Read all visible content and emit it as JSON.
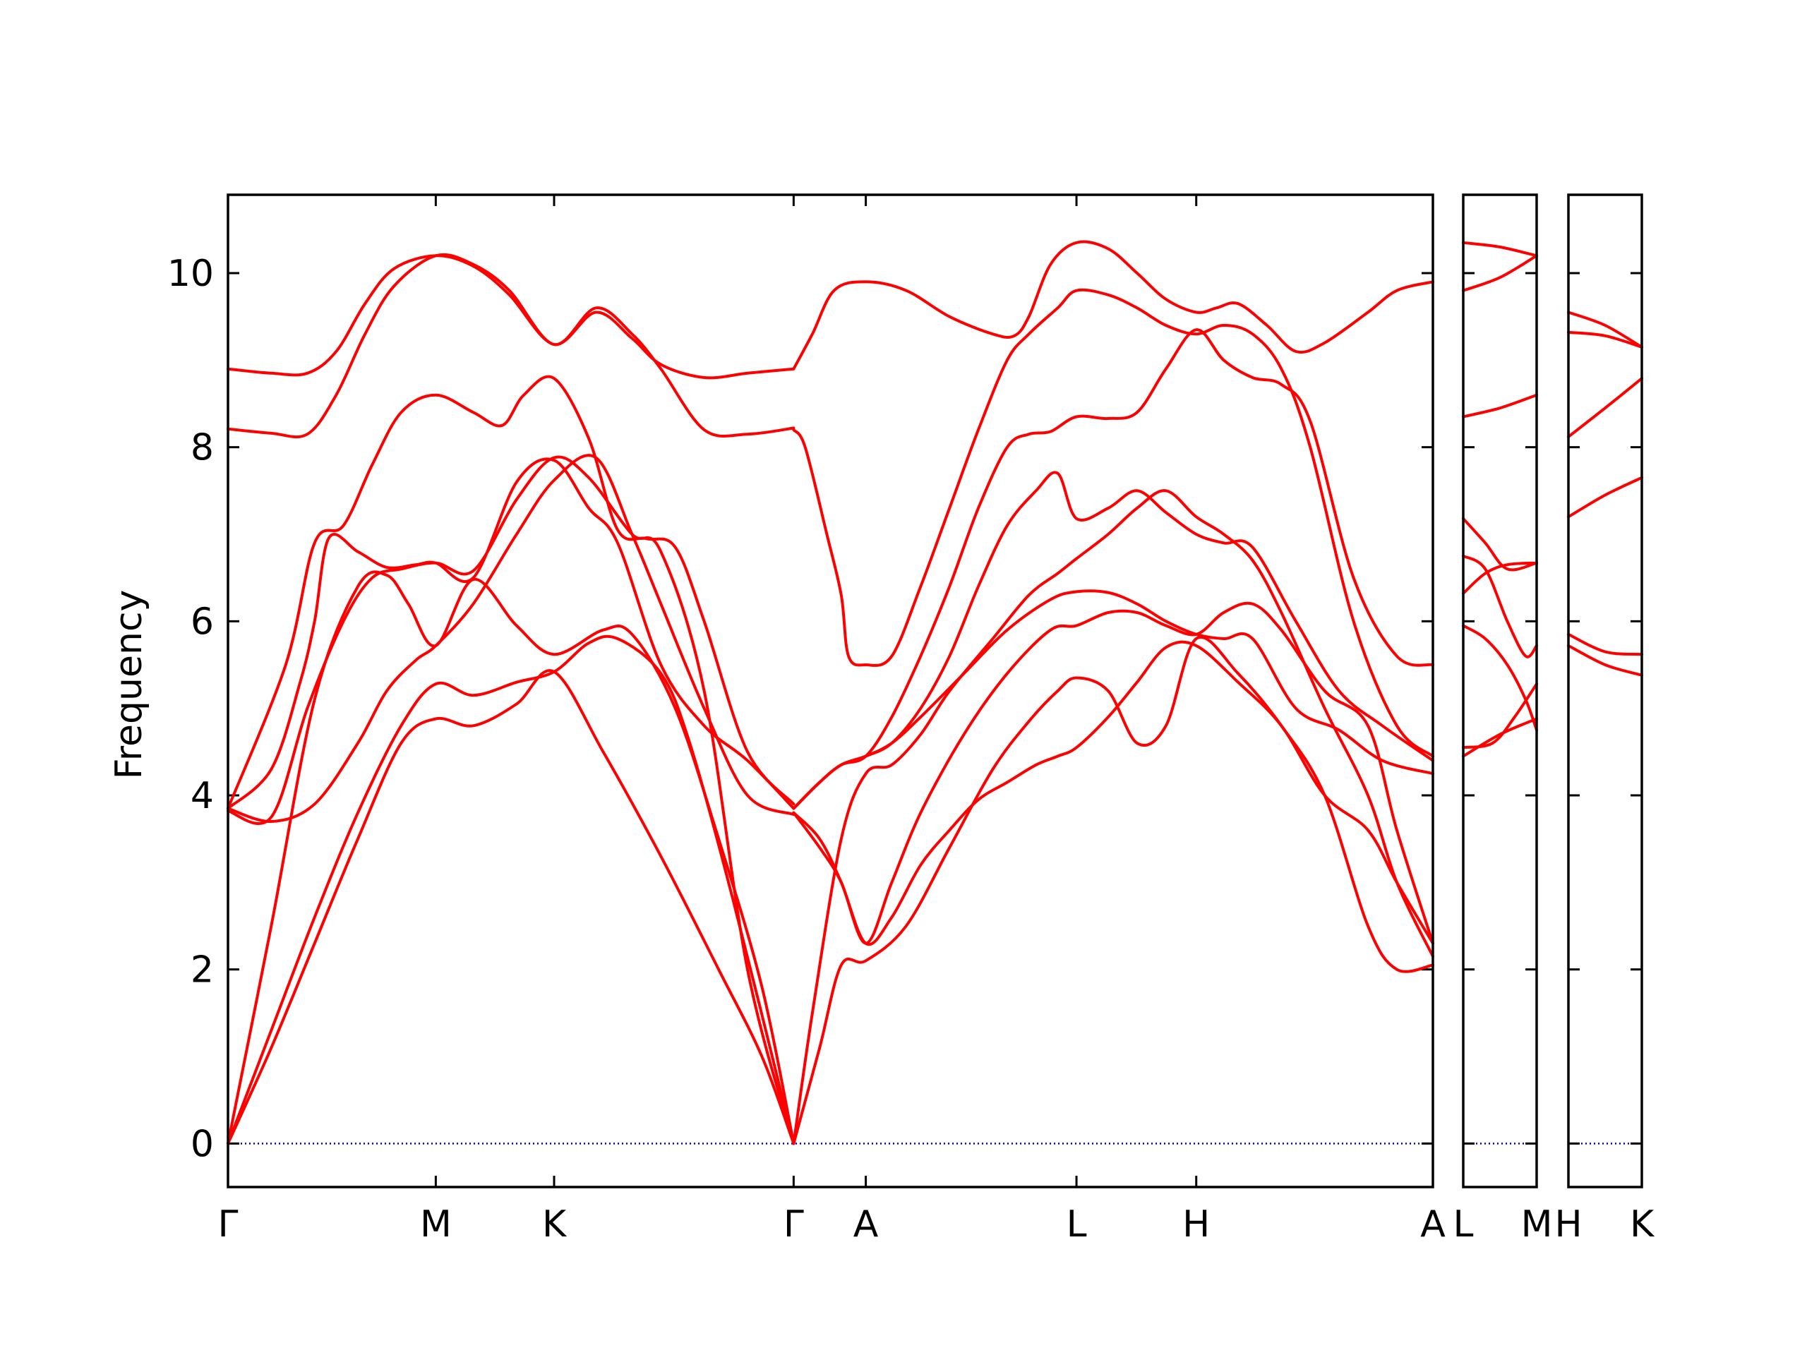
{
  "chart_data": {
    "type": "line",
    "title": "",
    "ylabel": "Frequency",
    "xlabel": "",
    "ylim": [
      -0.5,
      10.9
    ],
    "yticks": [
      0,
      2,
      4,
      6,
      8,
      10
    ],
    "grid": false,
    "legend": "none",
    "line_color": "#ff0000",
    "zero_line_color": "#0000cc",
    "panels": [
      {
        "xlim": [
          0,
          8.35
        ],
        "ticks": [
          {
            "label": "Γ",
            "x": 0
          },
          {
            "label": "M",
            "x": 1.44
          },
          {
            "label": "K",
            "x": 2.26
          },
          {
            "label": "Γ",
            "x": 3.92
          },
          {
            "label": "A",
            "x": 4.42
          },
          {
            "label": "L",
            "x": 5.88
          },
          {
            "label": "H",
            "x": 6.71
          },
          {
            "label": "A",
            "x": 8.35
          }
        ],
        "series": [
          {
            "x": [
              0,
              0.3,
              0.6,
              0.9,
              1.2,
              1.44,
              1.7,
              2.0,
              2.26,
              2.6,
              3.0,
              3.4,
              3.7,
              3.92
            ],
            "values": [
              0,
              1.1,
              2.3,
              3.5,
              4.6,
              4.88,
              4.8,
              5.05,
              5.42,
              4.5,
              3.3,
              2.0,
              1.0,
              0
            ]
          },
          {
            "x": [
              0,
              0.3,
              0.6,
              0.9,
              1.2,
              1.44,
              1.7,
              2.0,
              2.26,
              2.5,
              2.7,
              3.0,
              3.2,
              3.5,
              3.92
            ],
            "values": [
              0,
              1.3,
              2.6,
              3.8,
              4.8,
              5.28,
              5.15,
              5.3,
              5.42,
              5.75,
              5.8,
              5.4,
              4.6,
              2.8,
              0
            ]
          },
          {
            "x": [
              0,
              0.3,
              0.6,
              0.9,
              1.1,
              1.25,
              1.44,
              1.7,
              2.0,
              2.26,
              2.6,
              2.8,
              3.1,
              3.4,
              3.7,
              3.92
            ],
            "values": [
              0,
              2.5,
              5.1,
              6.4,
              6.53,
              6.2,
              5.72,
              6.48,
              5.95,
              5.62,
              5.9,
              5.85,
              5.0,
              3.5,
              1.8,
              0
            ]
          },
          {
            "x": [
              0,
              0.3,
              0.55,
              0.8,
              1.0,
              1.2,
              1.44,
              1.7,
              2.0,
              2.26,
              2.5,
              2.8,
              3.0,
              3.3,
              3.6,
              3.92
            ],
            "values": [
              3.82,
              3.75,
              5.0,
              6.0,
              6.5,
              6.6,
              6.67,
              6.58,
              7.4,
              7.88,
              7.65,
              7.0,
              6.8,
              5.2,
              2.0,
              0
            ]
          },
          {
            "x": [
              0,
              0.3,
              0.6,
              0.9,
              1.1,
              1.3,
              1.44,
              1.7,
              2.0,
              2.26,
              2.55,
              2.8,
              3.0,
              3.3,
              3.6,
              3.92
            ],
            "values": [
              3.85,
              3.7,
              3.9,
              4.6,
              5.2,
              5.55,
              5.72,
              6.2,
              7.0,
              7.62,
              7.88,
              7.0,
              6.2,
              5.0,
              4.0,
              3.78
            ]
          },
          {
            "x": [
              0,
              0.3,
              0.5,
              0.6,
              0.7,
              0.9,
              1.1,
              1.3,
              1.44,
              1.7,
              2.0,
              2.26,
              2.5,
              2.7,
              3.0,
              3.3,
              3.6,
              3.92
            ],
            "values": [
              3.85,
              4.3,
              5.3,
              6.0,
              6.96,
              6.8,
              6.62,
              6.65,
              6.67,
              6.5,
              7.6,
              7.85,
              7.3,
              6.9,
              5.5,
              4.8,
              4.4,
              3.85
            ]
          },
          {
            "x": [
              0,
              0.4,
              0.6,
              0.8,
              1.0,
              1.2,
              1.44,
              1.7,
              1.9,
              2.05,
              2.26,
              2.5,
              2.7,
              2.9,
              3.1,
              3.3,
              3.6,
              3.92
            ],
            "values": [
              3.85,
              5.5,
              6.9,
              7.1,
              7.8,
              8.4,
              8.6,
              8.4,
              8.25,
              8.6,
              8.79,
              8.1,
              7.05,
              6.95,
              6.85,
              6.0,
              4.5,
              3.9
            ]
          },
          {
            "x": [
              0,
              0.3,
              0.55,
              0.75,
              0.95,
              1.15,
              1.44,
              1.7,
              1.95,
              2.26,
              2.55,
              2.8,
              3.0,
              3.3,
              3.6,
              3.92
            ],
            "values": [
              8.21,
              8.16,
              8.15,
              8.6,
              9.3,
              9.85,
              10.2,
              10.1,
              9.8,
              9.18,
              9.6,
              9.3,
              8.9,
              8.2,
              8.15,
              8.22
            ]
          },
          {
            "x": [
              0,
              0.3,
              0.55,
              0.75,
              0.95,
              1.15,
              1.44,
              1.7,
              1.95,
              2.26,
              2.55,
              2.8,
              3.0,
              3.3,
              3.6,
              3.92
            ],
            "values": [
              8.9,
              8.85,
              8.85,
              9.1,
              9.65,
              10.05,
              10.2,
              10.08,
              9.75,
              9.18,
              9.55,
              9.25,
              8.95,
              8.8,
              8.85,
              8.9
            ]
          },
          {
            "x": [
              3.92,
              4.1,
              4.25,
              4.42,
              4.7,
              5.0,
              5.3,
              5.55,
              5.75,
              5.88,
              6.1,
              6.3,
              6.5,
              6.71,
              7.0,
              7.3,
              7.6,
              7.9,
              8.1,
              8.35
            ],
            "values": [
              0,
              1.1,
              2.05,
              2.1,
              2.5,
              3.4,
              4.3,
              4.85,
              5.2,
              5.35,
              5.2,
              4.6,
              4.8,
              5.8,
              5.4,
              4.8,
              4.0,
              2.5,
              2.0,
              2.05
            ]
          },
          {
            "x": [
              3.92,
              4.05,
              4.25,
              4.42,
              4.6,
              4.8,
              5.0,
              5.3,
              5.55,
              5.75,
              5.88,
              6.1,
              6.3,
              6.5,
              6.71,
              6.9,
              7.1,
              7.3,
              7.6,
              7.9,
              8.1,
              8.35
            ],
            "values": [
              0,
              1.5,
              3.5,
              4.25,
              4.35,
              4.7,
              5.2,
              5.8,
              6.3,
              6.55,
              6.72,
              7.0,
              7.3,
              7.5,
              7.2,
              7.0,
              6.7,
              6.1,
              5.0,
              4.0,
              3.0,
              2.15
            ]
          },
          {
            "x": [
              3.92,
              4.1,
              4.25,
              4.42,
              4.6,
              4.8,
              5.0,
              5.2,
              5.4,
              5.6,
              5.75,
              5.88,
              6.1,
              6.3,
              6.5,
              6.71,
              7.0,
              7.3,
              7.6,
              7.9,
              8.1,
              8.35
            ],
            "values": [
              3.8,
              3.5,
              3.0,
              2.3,
              2.6,
              3.2,
              3.6,
              3.95,
              4.15,
              4.35,
              4.45,
              4.55,
              4.9,
              5.3,
              5.7,
              5.72,
              5.3,
              4.8,
              4.0,
              3.6,
              3.0,
              2.3
            ]
          },
          {
            "x": [
              3.92,
              4.1,
              4.25,
              4.42,
              4.6,
              4.8,
              5.1,
              5.4,
              5.7,
              5.88,
              6.1,
              6.3,
              6.5,
              6.71,
              6.9,
              7.1,
              7.3,
              7.6,
              7.9,
              8.1,
              8.35
            ],
            "values": [
              3.8,
              3.4,
              3.0,
              2.3,
              3.0,
              3.8,
              4.7,
              5.4,
              5.9,
              5.95,
              6.1,
              6.1,
              5.95,
              5.85,
              6.1,
              6.2,
              5.9,
              5.2,
              4.8,
              3.6,
              2.3
            ]
          },
          {
            "x": [
              3.92,
              4.1,
              4.25,
              4.42,
              4.6,
              4.8,
              5.1,
              5.4,
              5.7,
              5.88,
              6.1,
              6.3,
              6.5,
              6.71,
              6.9,
              7.1,
              7.4,
              7.7,
              8.0,
              8.35
            ],
            "values": [
              3.85,
              4.15,
              4.35,
              4.45,
              4.6,
              4.9,
              5.4,
              5.9,
              6.25,
              6.34,
              6.33,
              6.2,
              6.0,
              5.85,
              5.8,
              5.8,
              5.0,
              4.75,
              4.4,
              4.25
            ]
          },
          {
            "x": [
              3.92,
              4.1,
              4.25,
              4.42,
              4.6,
              4.8,
              5.0,
              5.2,
              5.4,
              5.6,
              5.75,
              5.88,
              6.1,
              6.3,
              6.5,
              6.71,
              6.9,
              7.1,
              7.4,
              7.7,
              8.0,
              8.35
            ],
            "values": [
              3.85,
              4.15,
              4.35,
              4.45,
              4.6,
              5.0,
              5.6,
              6.4,
              7.1,
              7.5,
              7.7,
              7.18,
              7.3,
              7.5,
              7.25,
              7.0,
              6.9,
              6.85,
              6.0,
              5.2,
              4.8,
              4.4
            ]
          },
          {
            "x": [
              3.92,
              4.1,
              4.25,
              4.42,
              4.6,
              4.8,
              5.0,
              5.2,
              5.4,
              5.55,
              5.7,
              5.88,
              6.1,
              6.3,
              6.5,
              6.71,
              6.9,
              7.1,
              7.3,
              7.5,
              7.8,
              8.1,
              8.35
            ],
            "values": [
              3.85,
              4.15,
              4.35,
              4.45,
              4.9,
              5.6,
              6.4,
              7.3,
              8.0,
              8.15,
              8.18,
              8.35,
              8.33,
              8.4,
              8.9,
              9.35,
              9.0,
              8.8,
              8.72,
              8.3,
              6.5,
              5.6,
              5.5
            ]
          },
          {
            "x": [
              3.92,
              4.0,
              4.15,
              4.25,
              4.3,
              4.42,
              4.6,
              4.8,
              5.0,
              5.2,
              5.4,
              5.55,
              5.75,
              5.88,
              6.1,
              6.3,
              6.5,
              6.71,
              6.9,
              7.1,
              7.3,
              7.5,
              7.8,
              8.1,
              8.35
            ],
            "values": [
              8.2,
              8.0,
              7.0,
              6.3,
              5.6,
              5.5,
              5.6,
              6.4,
              7.3,
              8.2,
              9.0,
              9.3,
              9.6,
              9.8,
              9.75,
              9.6,
              9.4,
              9.3,
              9.4,
              9.3,
              8.9,
              8.0,
              6.0,
              4.8,
              4.45
            ]
          },
          {
            "x": [
              3.92,
              4.05,
              4.2,
              4.42,
              4.7,
              5.0,
              5.3,
              5.45,
              5.55,
              5.7,
              5.88,
              6.1,
              6.3,
              6.5,
              6.71,
              6.85,
              7.0,
              7.2,
              7.4,
              7.6,
              7.9,
              8.1,
              8.35
            ],
            "values": [
              8.9,
              9.3,
              9.8,
              9.9,
              9.8,
              9.5,
              9.3,
              9.28,
              9.5,
              10.1,
              10.35,
              10.28,
              10.0,
              9.7,
              9.55,
              9.6,
              9.65,
              9.4,
              9.1,
              9.2,
              9.55,
              9.8,
              9.9
            ]
          }
        ]
      },
      {
        "xlim": [
          0,
          1
        ],
        "ticks": [
          {
            "label": "L",
            "x": 0
          },
          {
            "label": "M",
            "x": 1
          }
        ],
        "series": [
          {
            "x": [
              0,
              0.5,
              1
            ],
            "values": [
              4.45,
              4.7,
              4.88
            ]
          },
          {
            "x": [
              0,
              0.4,
              0.7,
              1
            ],
            "values": [
              4.55,
              4.6,
              4.9,
              5.28
            ]
          },
          {
            "x": [
              0,
              0.3,
              0.6,
              0.85,
              1
            ],
            "values": [
              5.95,
              5.8,
              5.5,
              5.1,
              4.75
            ]
          },
          {
            "x": [
              0,
              0.3,
              0.6,
              1
            ],
            "values": [
              6.32,
              6.55,
              6.65,
              6.67
            ]
          },
          {
            "x": [
              0,
              0.3,
              0.6,
              0.85,
              1
            ],
            "values": [
              6.75,
              6.6,
              6.0,
              5.6,
              5.72
            ]
          },
          {
            "x": [
              0,
              0.3,
              0.6,
              1
            ],
            "values": [
              7.18,
              6.9,
              6.6,
              6.67
            ]
          },
          {
            "x": [
              0,
              0.5,
              1
            ],
            "values": [
              8.35,
              8.45,
              8.6
            ]
          },
          {
            "x": [
              0,
              0.5,
              1
            ],
            "values": [
              9.8,
              9.95,
              10.2
            ]
          },
          {
            "x": [
              0,
              0.5,
              1
            ],
            "values": [
              10.35,
              10.3,
              10.2
            ]
          }
        ]
      },
      {
        "xlim": [
          0,
          1
        ],
        "ticks": [
          {
            "label": "H",
            "x": 0
          },
          {
            "label": "K",
            "x": 1
          }
        ],
        "series": [
          {
            "x": [
              0,
              0.5,
              1
            ],
            "values": [
              5.72,
              5.5,
              5.38
            ]
          },
          {
            "x": [
              0,
              0.5,
              1
            ],
            "values": [
              5.85,
              5.65,
              5.62
            ]
          },
          {
            "x": [
              0,
              0.5,
              1
            ],
            "values": [
              7.2,
              7.45,
              7.65
            ]
          },
          {
            "x": [
              0,
              0.5,
              1
            ],
            "values": [
              8.12,
              8.45,
              8.79
            ]
          },
          {
            "x": [
              0,
              0.5,
              1
            ],
            "values": [
              9.32,
              9.28,
              9.15
            ]
          },
          {
            "x": [
              0,
              0.5,
              1
            ],
            "values": [
              9.55,
              9.4,
              9.15
            ]
          }
        ]
      }
    ]
  }
}
